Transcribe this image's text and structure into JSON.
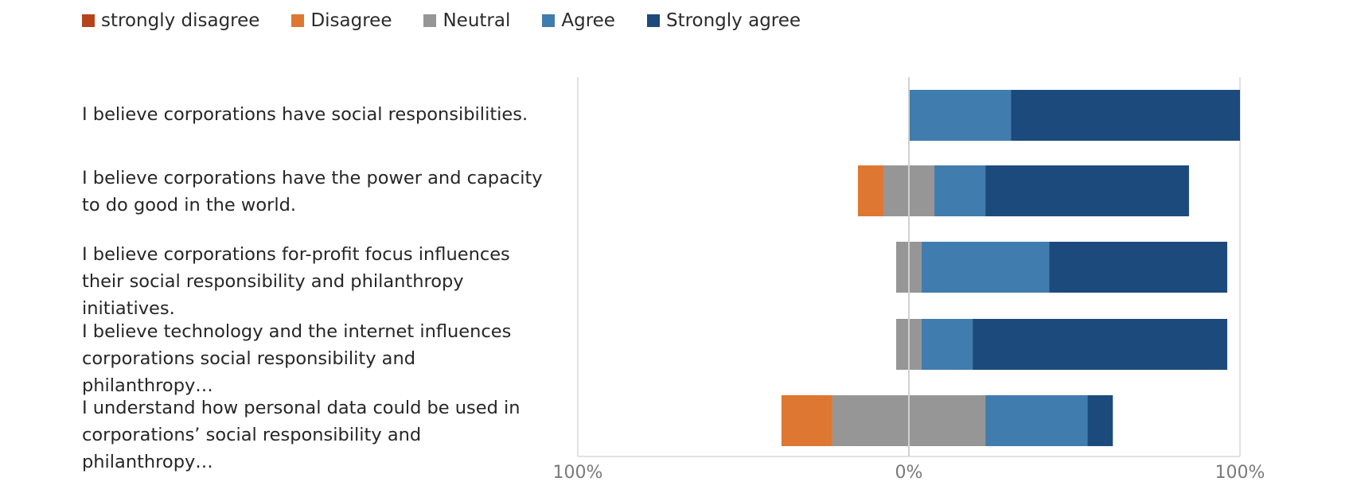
{
  "chart_data": {
    "type": "bar",
    "orientation": "horizontal",
    "stacking": "diverging",
    "legend_placement": "top",
    "grid": false,
    "xlim": [
      -100,
      100
    ],
    "x_tick_labels": [
      "100%",
      "0%",
      "100%"
    ],
    "categories": [
      "I believe corporations have social responsibilities.",
      "I believe corporations have the power and capacity to do good in the world.",
      "I believe corporations for-profit focus influences their social responsibility and philanthropy initiatives.",
      "I believe technology and the internet influences corporations social responsibility and philanthropy…",
      "I understand how personal data could be used in corporations’ social responsibility and philanthropy…"
    ],
    "series": [
      {
        "name": "strongly disagree",
        "color": "#b5441c",
        "values": [
          0,
          0,
          0,
          0,
          0
        ]
      },
      {
        "name": "Disagree",
        "color": "#de7731",
        "values": [
          0,
          7.7,
          0,
          0,
          15.4
        ]
      },
      {
        "name": "Neutral",
        "color": "#969696",
        "values": [
          0,
          15.4,
          7.7,
          7.7,
          46.2
        ]
      },
      {
        "name": "Agree",
        "color": "#417cae",
        "values": [
          30.8,
          15.4,
          38.5,
          15.4,
          30.8
        ]
      },
      {
        "name": "Strongly agree",
        "color": "#1c4a7c",
        "values": [
          69.2,
          61.5,
          53.8,
          76.9,
          7.7
        ]
      }
    ]
  }
}
